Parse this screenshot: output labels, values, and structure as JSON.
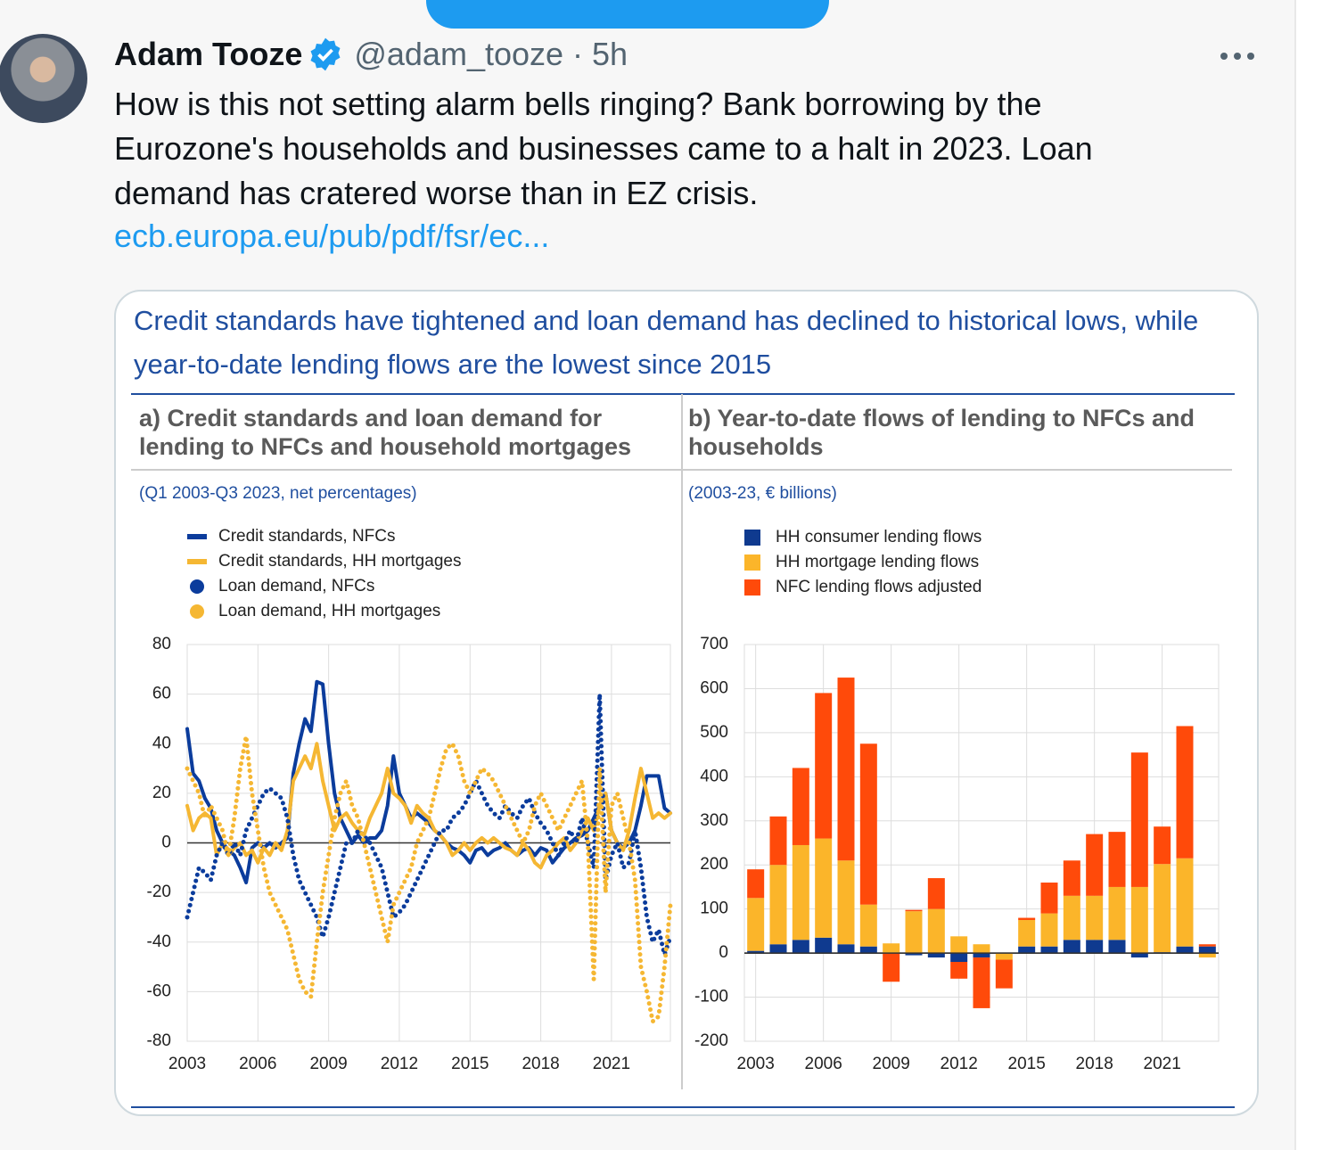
{
  "tweet": {
    "name": "Adam Tooze",
    "meta": "@adam_tooze · 5h",
    "text": "How is this not setting alarm bells ringing? Bank borrowing by the Eurozone's households and businesses came to a halt in 2023. Loan demand has cratered worse than in EZ crisis.",
    "link": "ecb.europa.eu/pub/pdf/fsr/ec..."
  },
  "figure": {
    "title": "Credit standards have tightened and loan demand has declined to historical lows, while year-to-date lending flows are the lowest since 2015"
  },
  "chart_data": [
    {
      "type": "line",
      "title": "a) Credit standards and loan demand for lending to NFCs and household mortgages",
      "subtitle": "(Q1 2003-Q3 2023, net percentages)",
      "x": [
        2003,
        2003.25,
        2003.5,
        2003.75,
        2004,
        2004.25,
        2004.5,
        2004.75,
        2005,
        2005.25,
        2005.5,
        2005.75,
        2006,
        2006.25,
        2006.5,
        2006.75,
        2007,
        2007.25,
        2007.5,
        2007.75,
        2008,
        2008.25,
        2008.5,
        2008.75,
        2009,
        2009.25,
        2009.5,
        2009.75,
        2010,
        2010.25,
        2010.5,
        2010.75,
        2011,
        2011.25,
        2011.5,
        2011.75,
        2012,
        2012.25,
        2012.5,
        2012.75,
        2013,
        2013.25,
        2013.5,
        2013.75,
        2014,
        2014.25,
        2014.5,
        2014.75,
        2015,
        2015.25,
        2015.5,
        2015.75,
        2016,
        2016.25,
        2016.5,
        2016.75,
        2017,
        2017.25,
        2017.5,
        2017.75,
        2018,
        2018.25,
        2018.5,
        2018.75,
        2019,
        2019.25,
        2019.5,
        2019.75,
        2020,
        2020.25,
        2020.5,
        2020.75,
        2021,
        2021.25,
        2021.5,
        2021.75,
        2022,
        2022.25,
        2022.5,
        2022.75,
        2023,
        2023.25,
        2023.5
      ],
      "xlim": [
        2003,
        2023.5
      ],
      "xticks": [
        2003,
        2006,
        2009,
        2012,
        2015,
        2018,
        2021
      ],
      "ylim": [
        -80,
        80
      ],
      "yticks": [
        -80,
        -60,
        -40,
        -20,
        0,
        20,
        40,
        60,
        80
      ],
      "grid": true,
      "series": [
        {
          "name": "Credit standards, NFCs",
          "color": "#0b3c9c",
          "style": "line",
          "values": [
            46,
            28,
            25,
            18,
            14,
            5,
            0,
            -3,
            -5,
            -10,
            -16,
            -2,
            0,
            -2,
            0,
            -2,
            0,
            2,
            28,
            40,
            50,
            45,
            65,
            64,
            40,
            20,
            10,
            5,
            0,
            3,
            0,
            2,
            2,
            5,
            15,
            35,
            20,
            15,
            10,
            12,
            10,
            8,
            5,
            3,
            0,
            -2,
            -3,
            -5,
            -8,
            -3,
            -2,
            -5,
            -3,
            -2,
            0,
            -3,
            -5,
            -3,
            -2,
            -5,
            -2,
            -3,
            -8,
            -5,
            -2,
            0,
            2,
            3,
            5,
            10,
            15,
            20,
            5,
            0,
            -2,
            0,
            5,
            15,
            27,
            27,
            27,
            14,
            12
          ]
        },
        {
          "name": "Credit standards, HH mortgages",
          "color": "#f5b733",
          "style": "line",
          "values": [
            15,
            5,
            10,
            12,
            10,
            -5,
            0,
            -5,
            -2,
            0,
            -5,
            -3,
            -8,
            -2,
            -5,
            0,
            -3,
            5,
            25,
            30,
            35,
            30,
            40,
            25,
            15,
            5,
            10,
            12,
            8,
            5,
            3,
            10,
            15,
            20,
            30,
            20,
            18,
            15,
            8,
            15,
            12,
            10,
            5,
            3,
            0,
            -5,
            -3,
            0,
            -3,
            0,
            2,
            0,
            2,
            0,
            -2,
            -3,
            -5,
            0,
            -3,
            -8,
            -10,
            -5,
            -3,
            0,
            2,
            -3,
            0,
            5,
            10,
            5,
            15,
            20,
            5,
            0,
            -3,
            5,
            18,
            30,
            20,
            10,
            12,
            10,
            12
          ]
        },
        {
          "name": "Loan demand, NFCs",
          "color": "#0b3c9c",
          "style": "dotted",
          "values": [
            -30,
            -20,
            -10,
            -12,
            -15,
            -5,
            0,
            -5,
            0,
            -5,
            5,
            10,
            15,
            20,
            22,
            20,
            18,
            10,
            -5,
            -15,
            -20,
            -25,
            -30,
            -38,
            -30,
            -20,
            -10,
            0,
            0,
            5,
            3,
            0,
            -5,
            -10,
            -20,
            -30,
            -28,
            -25,
            -20,
            -15,
            -10,
            -5,
            0,
            5,
            5,
            10,
            12,
            15,
            20,
            25,
            20,
            15,
            12,
            10,
            15,
            12,
            10,
            15,
            18,
            12,
            8,
            5,
            0,
            -5,
            0,
            5,
            0,
            10,
            0,
            -10,
            60,
            -15,
            -5,
            0,
            -10,
            -8,
            5,
            -10,
            -30,
            -40,
            -35,
            -45,
            -38
          ]
        },
        {
          "name": "Loan demand, HH mortgages",
          "color": "#f5b733",
          "style": "dotted",
          "values": [
            30,
            25,
            20,
            10,
            15,
            10,
            5,
            -5,
            10,
            30,
            43,
            20,
            5,
            -10,
            -20,
            -25,
            -30,
            -35,
            -45,
            -55,
            -60,
            -62,
            -40,
            -20,
            -5,
            10,
            20,
            25,
            15,
            10,
            0,
            -10,
            -20,
            -30,
            -40,
            -25,
            -20,
            -15,
            -10,
            0,
            5,
            10,
            20,
            30,
            38,
            40,
            35,
            25,
            20,
            25,
            30,
            28,
            25,
            20,
            15,
            10,
            5,
            0,
            5,
            15,
            20,
            15,
            10,
            5,
            10,
            15,
            20,
            25,
            0,
            -55,
            30,
            -20,
            15,
            20,
            10,
            0,
            -15,
            -50,
            -60,
            -72,
            -70,
            -50,
            -25
          ]
        }
      ]
    },
    {
      "type": "bar",
      "stacked": true,
      "title": "b) Year-to-date flows of lending to NFCs and households",
      "subtitle": "(2003-23, € billions)",
      "x": [
        2003,
        2004,
        2005,
        2006,
        2007,
        2008,
        2009,
        2010,
        2011,
        2012,
        2013,
        2014,
        2015,
        2016,
        2017,
        2018,
        2019,
        2020,
        2021,
        2022,
        2023
      ],
      "xlim": [
        2002.5,
        2023.5
      ],
      "xticks": [
        2003,
        2006,
        2009,
        2012,
        2015,
        2018,
        2021
      ],
      "ylim": [
        -200,
        700
      ],
      "yticks": [
        -200,
        -100,
        0,
        100,
        200,
        300,
        400,
        500,
        600,
        700
      ],
      "grid": true,
      "series": [
        {
          "name": "HH consumer lending flows",
          "color": "#0f3a8f",
          "values": [
            5,
            20,
            30,
            35,
            20,
            15,
            0,
            -5,
            -10,
            -20,
            -10,
            0,
            15,
            15,
            30,
            30,
            30,
            -10,
            2,
            15,
            15
          ]
        },
        {
          "name": "HH mortgage lending flows",
          "color": "#fbb52a",
          "values": [
            120,
            180,
            215,
            225,
            190,
            95,
            22,
            95,
            100,
            38,
            20,
            -15,
            60,
            75,
            100,
            100,
            120,
            150,
            200,
            200,
            -10
          ]
        },
        {
          "name": "NFC lending flows adjusted",
          "color": "#ff4a0a",
          "values": [
            65,
            110,
            175,
            330,
            415,
            365,
            -65,
            3,
            70,
            -38,
            -115,
            -65,
            5,
            70,
            80,
            140,
            125,
            305,
            85,
            300,
            5
          ]
        }
      ]
    }
  ]
}
